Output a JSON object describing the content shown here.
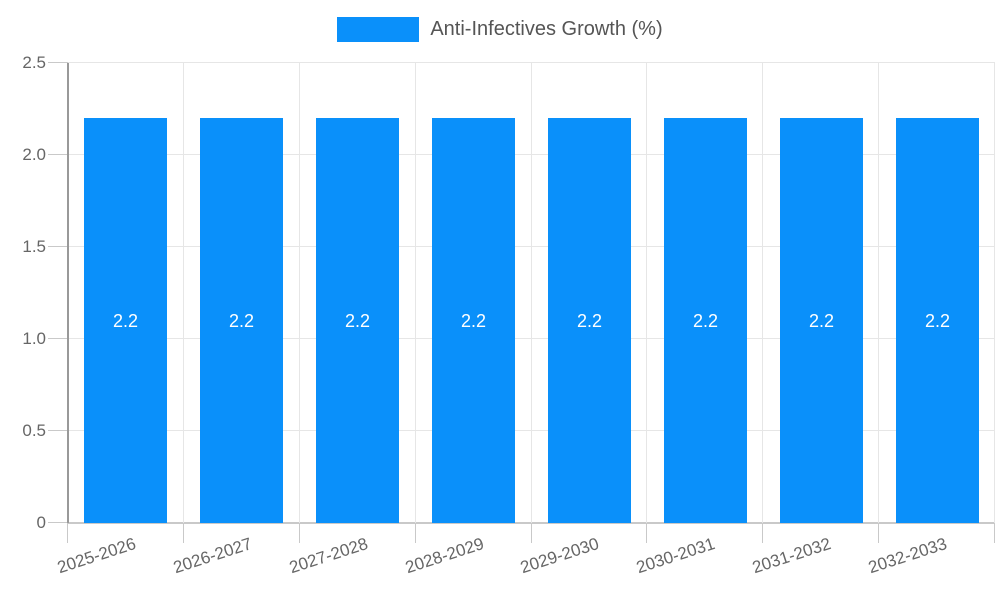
{
  "legend": {
    "label": "Anti-Infectives Growth (%)"
  },
  "chart_data": {
    "type": "bar",
    "categories": [
      "2025-2026",
      "2026-2027",
      "2027-2028",
      "2028-2029",
      "2029-2030",
      "2030-2031",
      "2031-2032",
      "2032-2033"
    ],
    "series": [
      {
        "name": "Anti-Infectives Growth (%)",
        "values": [
          2.2,
          2.2,
          2.2,
          2.2,
          2.2,
          2.2,
          2.2,
          2.2
        ]
      }
    ],
    "bar_labels": [
      "2.2",
      "2.2",
      "2.2",
      "2.2",
      "2.2",
      "2.2",
      "2.2",
      "2.2"
    ],
    "title": "",
    "xlabel": "",
    "ylabel": "",
    "ylim": [
      0,
      2.5
    ],
    "yticks": [
      0,
      0.5,
      1.0,
      1.5,
      2.0,
      2.5
    ],
    "ytick_labels": [
      "0",
      "0.5",
      "1.0",
      "1.5",
      "2.0",
      "2.5"
    ],
    "grid": true,
    "legend_position": "top",
    "colors": {
      "bar": "#0a90fa",
      "bar_label": "#ffffff",
      "axis_text": "#666666",
      "legend_text": "#555555",
      "gridline": "#e6e6e6",
      "axis_line": "#999999",
      "tick": "#c9c9c9"
    }
  }
}
